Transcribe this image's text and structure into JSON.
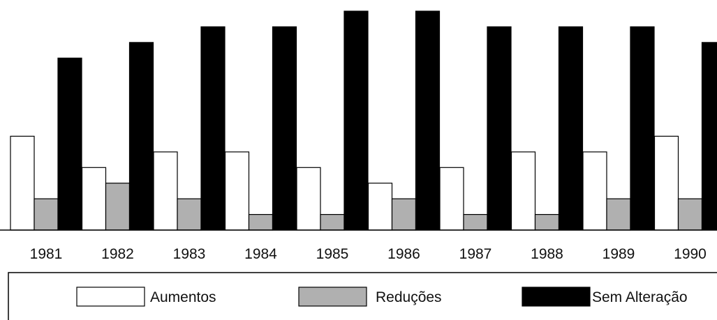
{
  "chart_data": {
    "type": "bar",
    "categories": [
      "1981",
      "1982",
      "1983",
      "1984",
      "1985",
      "1986",
      "1987",
      "1988",
      "1989",
      "1990"
    ],
    "series": [
      {
        "name": "Aumentos",
        "color": "#ffffff",
        "values": [
          6,
          4,
          5,
          5,
          4,
          3,
          4,
          5,
          5,
          6
        ]
      },
      {
        "name": "Reduções",
        "color": "#b0b0b0",
        "values": [
          2,
          3,
          2,
          1,
          1,
          2,
          1,
          1,
          2,
          2
        ]
      },
      {
        "name": "Sem Alteração",
        "color": "#000000",
        "values": [
          11,
          12,
          13,
          13,
          14,
          14,
          13,
          13,
          13,
          12
        ]
      }
    ],
    "ylim": [
      0,
      14
    ],
    "grid": false,
    "legend_position": "bottom"
  }
}
